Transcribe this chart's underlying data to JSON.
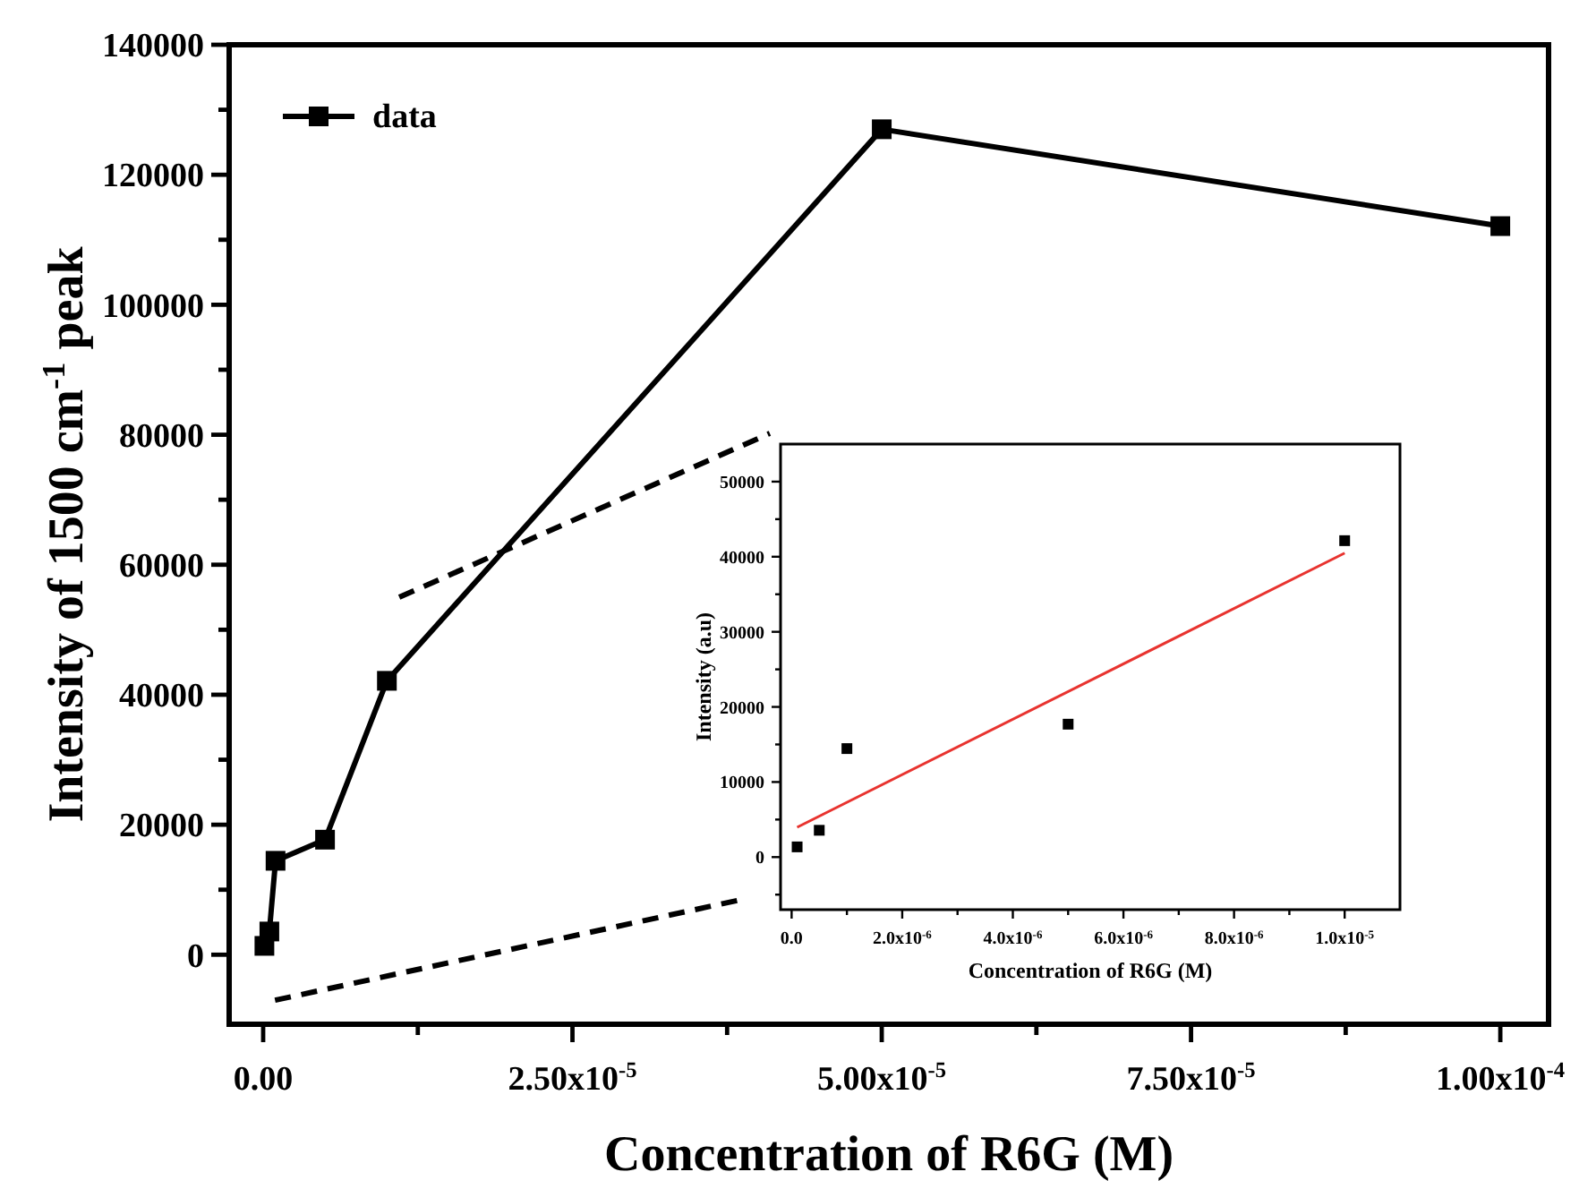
{
  "chart_data": [
    {
      "type": "line",
      "xlabel": "Concentration of R6G (M)",
      "ylabel": "Intensity of 1500 cm$^{-1}$ peak",
      "legend": "top left",
      "marker": "square",
      "line_style": "solid",
      "xlim": [
        -2.75e-06,
        0.0001039
      ],
      "ylim": [
        -10700,
        140000
      ],
      "xticks": [
        {
          "value": 0,
          "label": "0.00"
        },
        {
          "value": 1.25e-05,
          "label": null
        },
        {
          "value": 2.5e-05,
          "label": "2.50x10$^{-5}$"
        },
        {
          "value": 3.75e-05,
          "label": null
        },
        {
          "value": 5e-05,
          "label": "5.00x10$^{-5}$"
        },
        {
          "value": 6.25e-05,
          "label": null
        },
        {
          "value": 7.5e-05,
          "label": "7.50x10$^{-5}$"
        },
        {
          "value": 8.75e-05,
          "label": null
        },
        {
          "value": 0.0001,
          "label": "1.00x10$^{-4}$"
        }
      ],
      "yticks": [
        0,
        {
          "value": 10000,
          "label": null
        },
        20000,
        {
          "value": 30000,
          "label": null
        },
        40000,
        {
          "value": 50000,
          "label": null
        },
        60000,
        {
          "value": 70000,
          "label": null
        },
        80000,
        {
          "value": 90000,
          "label": null
        },
        100000,
        {
          "value": 110000,
          "label": null
        },
        120000,
        {
          "value": 130000,
          "label": null
        },
        140000
      ],
      "series": [
        {
          "name": "data",
          "color": "#000000",
          "x": [
            1e-07,
            5e-07,
            1e-06,
            5e-06,
            1e-05,
            5e-05,
            0.0001
          ],
          "values": [
            1360,
            3570,
            14450,
            17700,
            42140,
            127000,
            112100
          ]
        }
      ]
    },
    {
      "type": "scatter",
      "xlabel": "Concentration of R6G (M)",
      "ylabel": "Intensity (a.u)",
      "marker": "square",
      "xlim": [
        -2e-07,
        1.1e-05
      ],
      "ylim": [
        -7000,
        55000
      ],
      "xticks": [
        {
          "value": 0,
          "label": "0.0"
        },
        {
          "value": 1e-06,
          "label": null
        },
        {
          "value": 2e-06,
          "label": "2.0x10$^{-6}$"
        },
        {
          "value": 3e-06,
          "label": null
        },
        {
          "value": 4e-06,
          "label": "4.0x10$^{-6}$"
        },
        {
          "value": 5e-06,
          "label": null
        },
        {
          "value": 6e-06,
          "label": "6.0x10$^{-6}$"
        },
        {
          "value": 7e-06,
          "label": null
        },
        {
          "value": 8e-06,
          "label": "8.0x10$^{-6}$"
        },
        {
          "value": 9e-06,
          "label": null
        },
        {
          "value": 1e-05,
          "label": "1.0x10$^{-5}$"
        }
      ],
      "yticks": [
        {
          "value": -5000,
          "label": null
        },
        0,
        {
          "value": 5000,
          "label": null
        },
        10000,
        {
          "value": 15000,
          "label": null
        },
        20000,
        {
          "value": 25000,
          "label": null
        },
        30000,
        {
          "value": 35000,
          "label": null
        },
        40000,
        {
          "value": 45000,
          "label": null
        },
        50000
      ],
      "series": [
        {
          "color": "#000000",
          "x": [
            1e-07,
            5e-07,
            1e-06,
            5e-06,
            1e-05
          ],
          "values": [
            1360,
            3570,
            14450,
            17700,
            42140
          ]
        },
        {
          "type": "line",
          "color": "#e8332f",
          "marker": "none",
          "x": [
            1e-07,
            1e-05
          ],
          "values": [
            3970,
            40480
          ]
        }
      ]
    }
  ]
}
